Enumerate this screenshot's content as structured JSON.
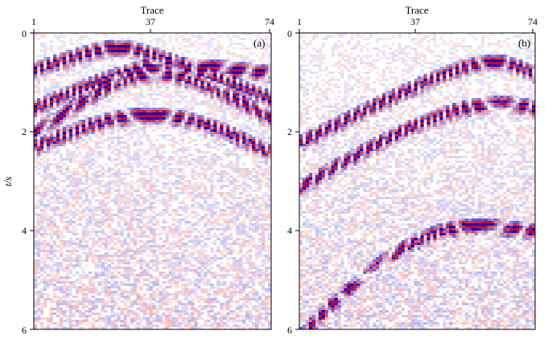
{
  "chart_data": [
    {
      "type": "heatmap",
      "panel_label": "(a)",
      "xlabel": "Trace",
      "ylabel": "t/s",
      "x_ticks": [
        1,
        37,
        74
      ],
      "y_ticks": [
        0,
        2,
        4,
        6
      ],
      "xlim": [
        1,
        74
      ],
      "ylim": [
        0,
        6
      ],
      "colormap": {
        "positive": "#e00000",
        "zero": "#ffffff",
        "negative": "#0000d0"
      },
      "events": [
        {
          "kind": "hyperbola",
          "apex_trace": 27,
          "apex_t": 0.18,
          "t_at_trace_1": 0.62,
          "t_at_trace_74": 1.2
        },
        {
          "kind": "hyperbola",
          "apex_trace": 42,
          "apex_t": 0.55,
          "t_at_trace_1": 1.4,
          "t_at_trace_74": 0.7
        },
        {
          "kind": "hyperbola",
          "apex_trace": 38,
          "apex_t": 0.7,
          "t_at_trace_1": 1.9,
          "t_at_trace_74": 1.6
        },
        {
          "kind": "hyperbola",
          "apex_trace": 37,
          "apex_t": 1.55,
          "t_at_trace_1": 2.2,
          "t_at_trace_74": 2.3
        }
      ]
    },
    {
      "type": "heatmap",
      "panel_label": "(b)",
      "xlabel": "Trace",
      "ylabel": "",
      "x_ticks": [
        1,
        37,
        74
      ],
      "y_ticks": [
        0,
        2,
        4,
        6
      ],
      "xlim": [
        1,
        74
      ],
      "ylim": [
        0,
        6
      ],
      "colormap": {
        "positive": "#e00000",
        "zero": "#ffffff",
        "negative": "#0000d0"
      },
      "events": [
        {
          "kind": "hyperbola",
          "apex_trace": 62,
          "apex_t": 0.48,
          "t_at_trace_1": 2.1,
          "t_at_trace_74": 0.7
        },
        {
          "kind": "hyperbola",
          "apex_trace": 64,
          "apex_t": 1.32,
          "t_at_trace_1": 3.0,
          "t_at_trace_74": 1.4
        },
        {
          "kind": "hyperbola",
          "apex_trace": 55,
          "apex_t": 3.8,
          "t_at_trace_1": 6.0,
          "t_at_trace_74": 3.9
        }
      ]
    }
  ]
}
